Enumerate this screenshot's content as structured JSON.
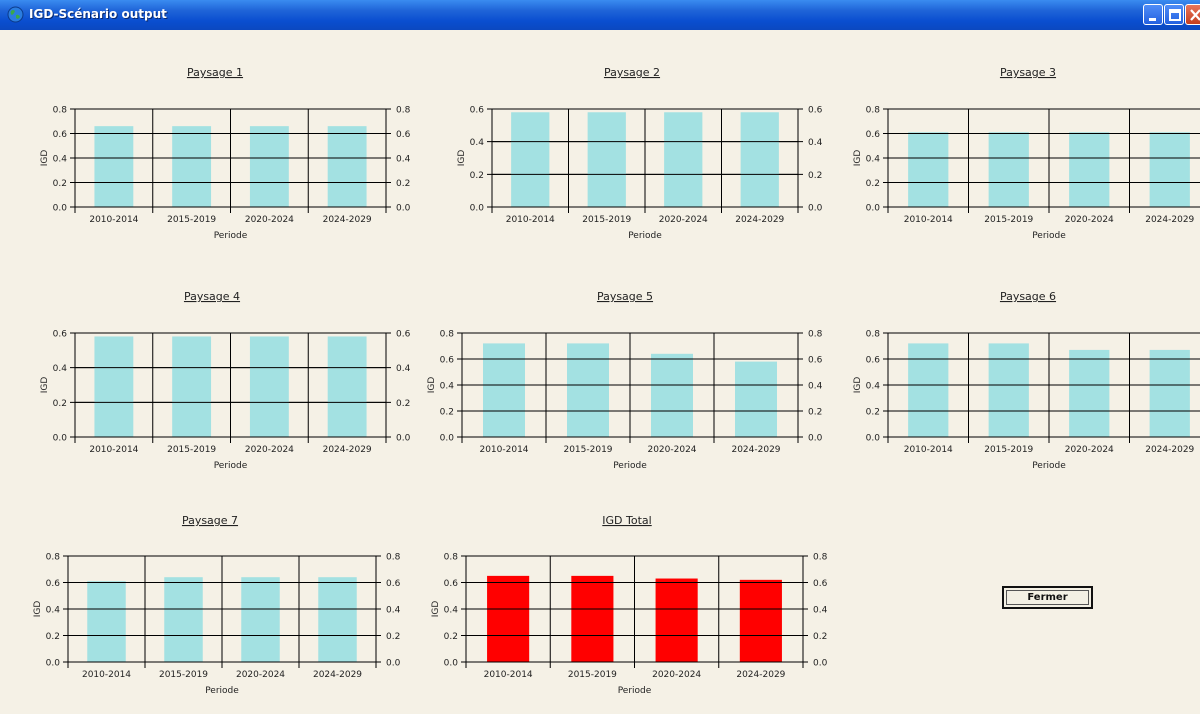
{
  "window": {
    "title": "IGD-Scénario output",
    "controls": {
      "minimize": "minimize-button",
      "maximize": "maximize-button",
      "close": "close-button"
    }
  },
  "buttons": {
    "close_label": "Fermer"
  },
  "chart_data": [
    {
      "type": "bar",
      "title": "Paysage 1",
      "categories": [
        "2010-2014",
        "2015-2019",
        "2020-2024",
        "2024-2029"
      ],
      "values": [
        0.66,
        0.66,
        0.66,
        0.66
      ],
      "xlabel": "Periode",
      "ylabel": "IGD",
      "ylim": [
        0,
        0.8
      ],
      "yticks": [
        "0.0",
        "0.2",
        "0.4",
        "0.6",
        "0.8"
      ],
      "bar_color": "#a3e1e2",
      "grid": true
    },
    {
      "type": "bar",
      "title": "Paysage 2",
      "categories": [
        "2010-2014",
        "2015-2019",
        "2020-2024",
        "2024-2029"
      ],
      "values": [
        0.58,
        0.58,
        0.58,
        0.58
      ],
      "xlabel": "Periode",
      "ylabel": "IGD",
      "ylim": [
        0,
        0.6
      ],
      "yticks": [
        "0.0",
        "0.2",
        "0.4",
        "0.6"
      ],
      "bar_color": "#a3e1e2",
      "grid": true
    },
    {
      "type": "bar",
      "title": "Paysage 3",
      "categories": [
        "2010-2014",
        "2015-2019",
        "2020-2024",
        "2024-2029"
      ],
      "values": [
        0.61,
        0.61,
        0.61,
        0.61
      ],
      "xlabel": "Periode",
      "ylabel": "IGD",
      "ylim": [
        0,
        0.8
      ],
      "yticks": [
        "0.0",
        "0.2",
        "0.4",
        "0.6",
        "0.8"
      ],
      "bar_color": "#a3e1e2",
      "grid": true
    },
    {
      "type": "bar",
      "title": "Paysage 4",
      "categories": [
        "2010-2014",
        "2015-2019",
        "2020-2024",
        "2024-2029"
      ],
      "values": [
        0.58,
        0.58,
        0.58,
        0.58
      ],
      "xlabel": "Periode",
      "ylabel": "IGD",
      "ylim": [
        0,
        0.6
      ],
      "yticks": [
        "0.0",
        "0.2",
        "0.4",
        "0.6"
      ],
      "bar_color": "#a3e1e2",
      "grid": true
    },
    {
      "type": "bar",
      "title": "Paysage 5",
      "categories": [
        "2010-2014",
        "2015-2019",
        "2020-2024",
        "2024-2029"
      ],
      "values": [
        0.72,
        0.72,
        0.64,
        0.58
      ],
      "xlabel": "Periode",
      "ylabel": "IGD",
      "ylim": [
        0,
        0.8
      ],
      "yticks": [
        "0.0",
        "0.2",
        "0.4",
        "0.6",
        "0.8"
      ],
      "bar_color": "#a3e1e2",
      "grid": true
    },
    {
      "type": "bar",
      "title": "Paysage 6",
      "categories": [
        "2010-2014",
        "2015-2019",
        "2020-2024",
        "2024-2029"
      ],
      "values": [
        0.72,
        0.72,
        0.67,
        0.67
      ],
      "xlabel": "Periode",
      "ylabel": "IGD",
      "ylim": [
        0,
        0.8
      ],
      "yticks": [
        "0.0",
        "0.2",
        "0.4",
        "0.6",
        "0.8"
      ],
      "bar_color": "#a3e1e2",
      "grid": true
    },
    {
      "type": "bar",
      "title": "Paysage 7",
      "categories": [
        "2010-2014",
        "2015-2019",
        "2020-2024",
        "2024-2029"
      ],
      "values": [
        0.61,
        0.64,
        0.64,
        0.64
      ],
      "xlabel": "Periode",
      "ylabel": "IGD",
      "ylim": [
        0,
        0.8
      ],
      "yticks": [
        "0.0",
        "0.2",
        "0.4",
        "0.6",
        "0.8"
      ],
      "bar_color": "#a3e1e2",
      "grid": true
    },
    {
      "type": "bar",
      "title": "IGD Total",
      "categories": [
        "2010-2014",
        "2015-2019",
        "2020-2024",
        "2024-2029"
      ],
      "values": [
        0.65,
        0.65,
        0.63,
        0.62
      ],
      "xlabel": "Periode",
      "ylabel": "IGD",
      "ylim": [
        0,
        0.8
      ],
      "yticks": [
        "0.0",
        "0.2",
        "0.4",
        "0.6",
        "0.8"
      ],
      "bar_color": "#ff0000",
      "grid": true
    }
  ]
}
